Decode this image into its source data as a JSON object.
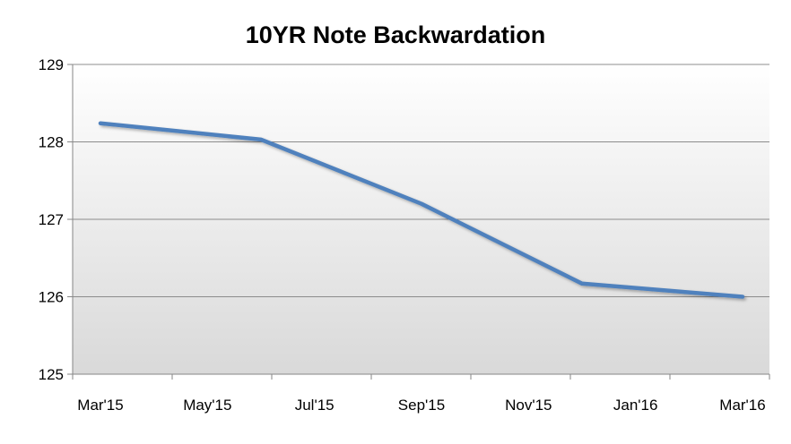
{
  "chart_data": {
    "type": "line",
    "title": "10YR Note Backwardation",
    "xlabel": "",
    "ylabel": "",
    "x_tick_labels": [
      "Mar'15",
      "May'15",
      "Jul'15",
      "Sep'15",
      "Nov'15",
      "Jan'16",
      "Mar'16"
    ],
    "ylim": [
      125,
      129
    ],
    "y_ticks": [
      125,
      126,
      127,
      128,
      129
    ],
    "grid": "horizontal",
    "legend": "none",
    "series": [
      {
        "color": "#4f81bd",
        "points": [
          {
            "x": "Mar'15",
            "y": 128.24
          },
          {
            "x": "Jun'15",
            "y": 128.03
          },
          {
            "x": "Sep'15",
            "y": 127.2
          },
          {
            "x": "Dec'15",
            "y": 126.17
          },
          {
            "x": "Mar'16",
            "y": 126.0
          }
        ]
      }
    ],
    "colors": {
      "plot_background_top": "#ffffff",
      "plot_background_bottom": "#d9d9d9",
      "gridline": "#8c8c8c",
      "axis": "#868686"
    }
  }
}
